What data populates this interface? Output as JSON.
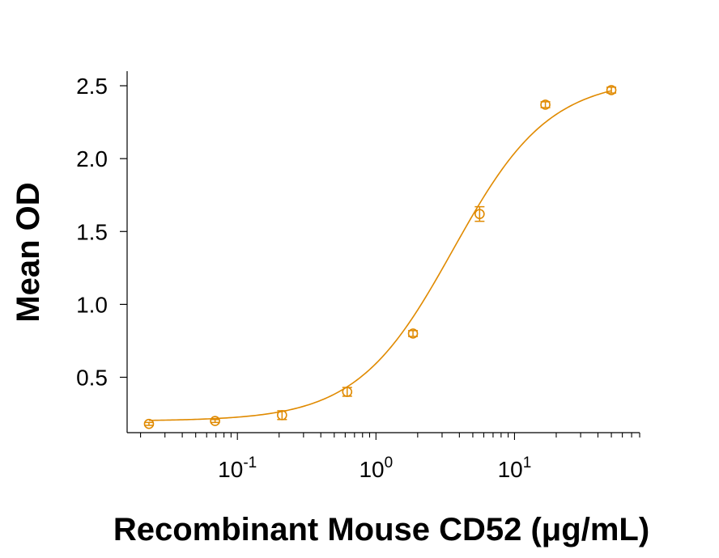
{
  "chart_data": {
    "type": "scatter",
    "title": "",
    "xlabel": "Recombinant Mouse CD52 (μg/mL)",
    "ylabel": "Mean OD",
    "x_scale": "log",
    "xlim": [
      0.016,
      80
    ],
    "ylim": [
      0.12,
      2.6
    ],
    "x_ticks": [
      {
        "value": 0.1,
        "base": "10",
        "exp": "-1"
      },
      {
        "value": 1,
        "base": "10",
        "exp": "0"
      },
      {
        "value": 10,
        "base": "10",
        "exp": "1"
      }
    ],
    "y_ticks": [
      {
        "value": 0.5,
        "label": "0.5"
      },
      {
        "value": 1.0,
        "label": "1.0"
      },
      {
        "value": 1.5,
        "label": "1.5"
      },
      {
        "value": 2.0,
        "label": "2.0"
      },
      {
        "value": 2.5,
        "label": "2.5"
      }
    ],
    "grid": false,
    "legend": "none",
    "color": "#E08A00",
    "series": [
      {
        "points": [
          {
            "x": 0.023,
            "y": 0.18,
            "err": 0.01
          },
          {
            "x": 0.069,
            "y": 0.2,
            "err": 0.01
          },
          {
            "x": 0.21,
            "y": 0.24,
            "err": 0.03
          },
          {
            "x": 0.62,
            "y": 0.4,
            "err": 0.03
          },
          {
            "x": 1.85,
            "y": 0.8,
            "err": 0.02
          },
          {
            "x": 5.6,
            "y": 1.62,
            "err": 0.05
          },
          {
            "x": 16.7,
            "y": 2.37,
            "err": 0.02
          },
          {
            "x": 50,
            "y": 2.47,
            "err": 0.02
          }
        ],
        "fit": {
          "bottom": 0.2,
          "top": 2.55,
          "ec50": 3.6,
          "hill": 1.25
        }
      }
    ]
  }
}
